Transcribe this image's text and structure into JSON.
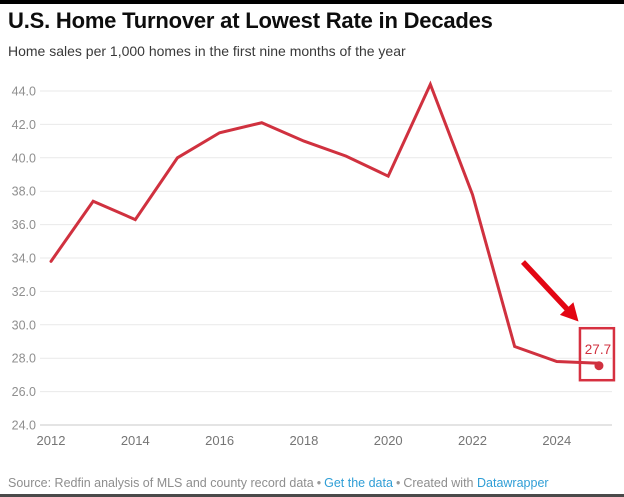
{
  "header": {
    "title": "U.S. Home Turnover at Lowest Rate in Decades",
    "subtitle": "Home sales per 1,000 homes in the first nine months of the year"
  },
  "chart_data": {
    "type": "line",
    "title": "U.S. Home Turnover at Lowest Rate in Decades",
    "subtitle": "Home sales per 1,000 homes in the first nine months of the year",
    "x": [
      2012,
      2013,
      2014,
      2015,
      2016,
      2017,
      2018,
      2019,
      2020,
      2021,
      2022,
      2023,
      2024,
      2025
    ],
    "series": [
      {
        "name": "Home sales per 1,000 homes",
        "values": [
          33.8,
          37.4,
          36.3,
          40.0,
          41.5,
          42.1,
          41.0,
          40.1,
          38.9,
          44.4,
          37.8,
          28.7,
          27.8,
          27.7
        ]
      }
    ],
    "ylim": [
      24,
      44
    ],
    "yticks": [
      24,
      26,
      28,
      30,
      32,
      34,
      36,
      38,
      40,
      42,
      44
    ],
    "ytick_decimals": 1,
    "xticks": [
      2012,
      2014,
      2016,
      2018,
      2020,
      2022,
      2024
    ],
    "grid": true,
    "legend": "none",
    "xlabel": "",
    "ylabel": "",
    "annotation": {
      "label": "27.7",
      "target_year": 2025,
      "target_value": 27.7,
      "boxed": true,
      "has_arrow": true
    },
    "colors": {
      "line": "#d0313f",
      "endpoint_dot": "#d0313f",
      "annotation_box": "#d63040",
      "annotation_text": "#d0313f",
      "arrow": "#e30613",
      "grid_line": "#e9e9e9",
      "baseline": "#c9c9c9",
      "ytick_text": "#8f8f8f",
      "xtick_text": "#757575"
    }
  },
  "footer": {
    "source_text": "Source: Redfin analysis of MLS and county record data",
    "separator": "•",
    "get_data_label": "Get the data",
    "separator2": "•",
    "created_with_text": "Created with",
    "datawrapper_label": "Datawrapper"
  }
}
